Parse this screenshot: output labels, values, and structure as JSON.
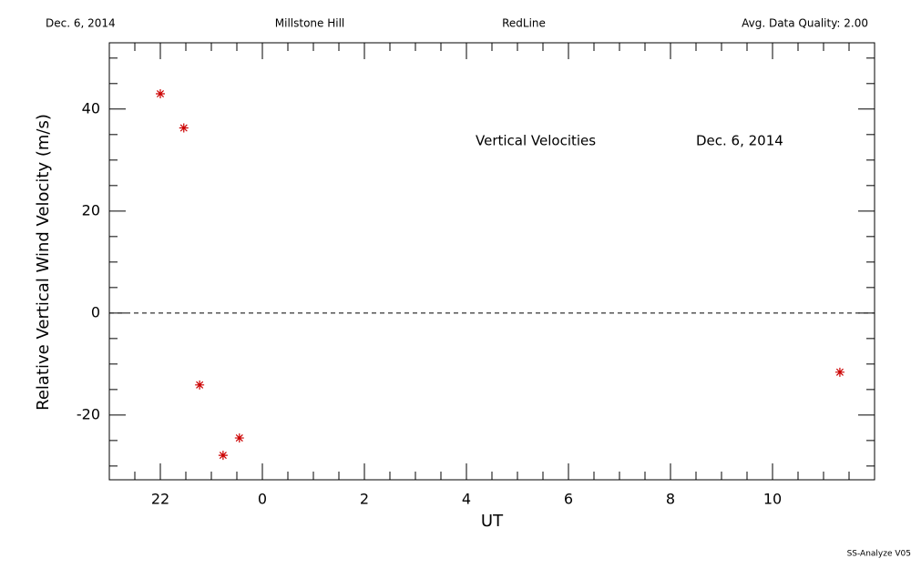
{
  "chart_data": {
    "type": "scatter",
    "header": [
      "Dec. 6, 2014",
      "Millstone Hill",
      "RedLine",
      "Avg. Data Quality: 2.00"
    ],
    "annotations": [
      "Vertical Velocities",
      "Dec. 6, 2014"
    ],
    "footer": "SS-Analyze V05",
    "xlabel": "UT",
    "ylabel": "Relative Vertical Wind Velocity (m/s)",
    "x": [
      -2.0,
      -1.54,
      -1.23,
      -0.77,
      -0.45,
      11.32
    ],
    "values": [
      43.0,
      36.3,
      -14.1,
      -27.9,
      -24.5,
      -11.6
    ],
    "color": "#cc0000",
    "xlim": [
      -3,
      12
    ],
    "ylim": [
      -32.7,
      53
    ],
    "xticks": [
      {
        "value": -2,
        "label": "22"
      },
      0,
      2,
      4,
      6,
      8,
      10
    ],
    "yticks": [
      -20,
      0,
      20,
      40
    ],
    "xminorticks": [
      -2.5,
      -1.5,
      -1,
      -0.5,
      0.5,
      1,
      1.5,
      2.5,
      3,
      3.5,
      4.5,
      5,
      5.5,
      6.5,
      7,
      7.5,
      8.5,
      9,
      9.5,
      10.5,
      11,
      11.5
    ],
    "yminorticks": [
      -30,
      -25,
      -15,
      -10,
      -5,
      5,
      10,
      15,
      25,
      30,
      35,
      45,
      50
    ],
    "zero_line": true
  }
}
